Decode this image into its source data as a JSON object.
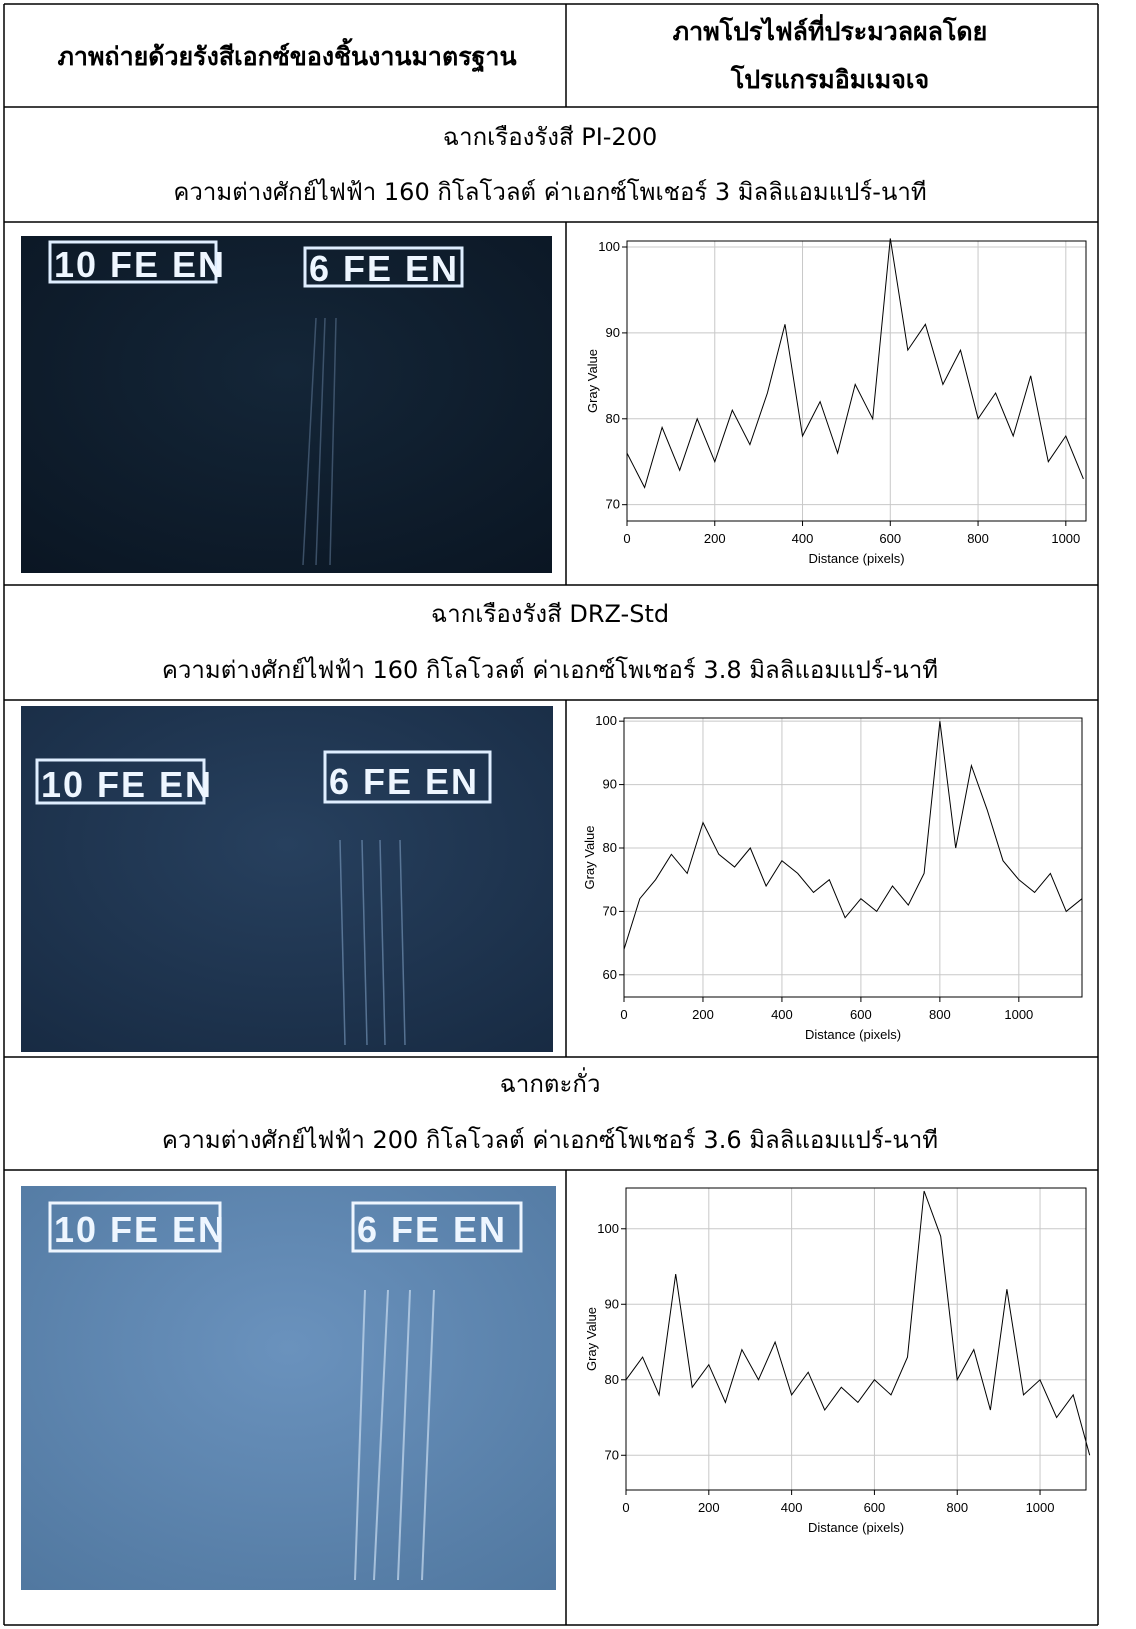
{
  "header": {
    "col1": "ภาพถ่ายด้วยรังสีเอกซ์ของชิ้นงานมาตรฐาน",
    "col2": [
      "ภาพโปรไฟล์ที่ประมวลผลโดย",
      "โปรแกรมอิมเมจเจ"
    ]
  },
  "sections": [
    {
      "title": "ฉากเรืองรังสี PI-200",
      "conditions": "ความต่างศักย์ไฟฟ้า 160  กิโลโวลต์ ค่าเอกซ์โพเชอร์ 3  มิลลิแอมแปร์-นาที",
      "image_labels": [
        "10 FE EN",
        "6 FE EN"
      ],
      "chart": {
        "type": "line",
        "xlabel": "Distance (pixels)",
        "ylabel": "Gray Value",
        "color": "#000000",
        "grid": true,
        "x": [
          0,
          40,
          80,
          120,
          160,
          200,
          240,
          280,
          320,
          360,
          400,
          440,
          480,
          520,
          560,
          600,
          640,
          680,
          720,
          760,
          800,
          840,
          880,
          920,
          960,
          1000,
          1040
        ],
        "values": [
          76,
          72,
          79,
          74,
          80,
          75,
          81,
          77,
          83,
          91,
          78,
          82,
          76,
          84,
          80,
          101,
          88,
          91,
          84,
          88,
          80,
          83,
          78,
          85,
          75,
          78,
          73
        ],
        "xlim": [
          0,
          1046
        ],
        "ylim": [
          68.1,
          100.7
        ],
        "xticks": [
          0,
          200,
          400,
          600,
          800,
          1000
        ],
        "yticks": [
          70,
          80,
          90,
          100
        ]
      }
    },
    {
      "title": "ฉากเรืองรังสี DRZ-Std",
      "conditions": "ความต่างศักย์ไฟฟ้า 160  กิโลโวลต์ ค่าเอกซ์โพเชอร์ 3.8  มิลลิแอมแปร์-นาที",
      "image_labels": [
        "10 FE EN",
        "6 FE EN"
      ],
      "chart": {
        "type": "line",
        "xlabel": "Distance (pixels)",
        "ylabel": "Gray Value",
        "color": "#000000",
        "grid": true,
        "x": [
          0,
          40,
          80,
          120,
          160,
          200,
          240,
          280,
          320,
          360,
          400,
          440,
          480,
          520,
          560,
          600,
          640,
          680,
          720,
          760,
          800,
          840,
          880,
          920,
          960,
          1000,
          1040,
          1080,
          1120,
          1160
        ],
        "values": [
          64,
          72,
          75,
          79,
          76,
          84,
          79,
          77,
          80,
          74,
          78,
          76,
          73,
          75,
          69,
          72,
          70,
          74,
          71,
          76,
          100,
          80,
          93,
          86,
          78,
          75,
          73,
          76,
          70,
          72
        ],
        "xlim": [
          0,
          1160
        ],
        "ylim": [
          56.5,
          100.5
        ],
        "xticks": [
          0,
          200,
          400,
          600,
          800,
          1000
        ],
        "yticks": [
          60,
          70,
          80,
          90,
          100
        ]
      }
    },
    {
      "title": "ฉากตะกั่ว",
      "conditions": "ความต่างศักย์ไฟฟ้า 200  กิโลโวลต์ ค่าเอกซ์โพเชอร์ 3.6  มิลลิแอมแปร์-นาที",
      "image_labels": [
        "10 FE EN",
        "6 FE EN"
      ],
      "chart": {
        "type": "line",
        "xlabel": "Distance (pixels)",
        "ylabel": "Gray Value",
        "color": "#000000",
        "grid": true,
        "x": [
          0,
          40,
          80,
          120,
          160,
          200,
          240,
          280,
          320,
          360,
          400,
          440,
          480,
          520,
          560,
          600,
          640,
          680,
          720,
          760,
          800,
          840,
          880,
          920,
          960,
          1000,
          1040,
          1080,
          1120
        ],
        "values": [
          80,
          83,
          78,
          94,
          79,
          82,
          77,
          84,
          80,
          85,
          78,
          81,
          76,
          79,
          77,
          80,
          78,
          83,
          105,
          99,
          80,
          84,
          76,
          92,
          78,
          80,
          75,
          78,
          70
        ],
        "xlim": [
          0,
          1111
        ],
        "ylim": [
          65.4,
          105.4
        ],
        "xticks": [
          0,
          200,
          400,
          600,
          800,
          1000
        ],
        "yticks": [
          70,
          80,
          90,
          100
        ]
      }
    }
  ]
}
